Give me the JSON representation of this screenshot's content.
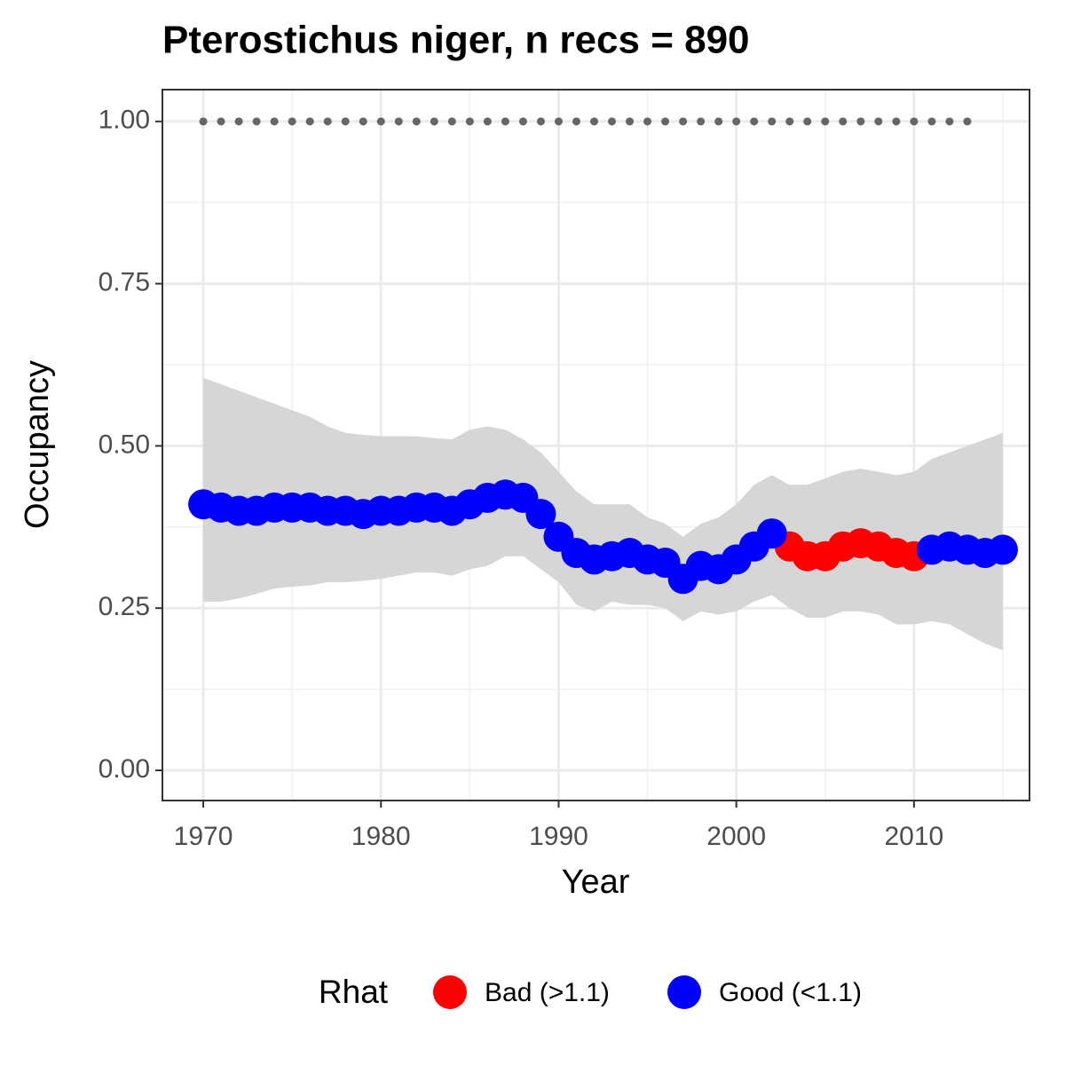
{
  "chart_data": {
    "type": "line",
    "title": "Pterostichus niger, n recs = 890",
    "xlabel": "Year",
    "ylabel": "Occupancy",
    "legend_title": "Rhat",
    "legend_position": "bottom",
    "x": [
      1970,
      1971,
      1972,
      1973,
      1974,
      1975,
      1976,
      1977,
      1978,
      1979,
      1980,
      1981,
      1982,
      1983,
      1984,
      1985,
      1986,
      1987,
      1988,
      1989,
      1990,
      1991,
      1992,
      1993,
      1994,
      1995,
      1996,
      1997,
      1998,
      1999,
      2000,
      2001,
      2002,
      2003,
      2004,
      2005,
      2006,
      2007,
      2008,
      2009,
      2010,
      2011,
      2012,
      2013,
      2014,
      2015
    ],
    "series": [
      {
        "name": "Bad (>1.1)",
        "color": "#ff0000",
        "values": [
          null,
          null,
          null,
          null,
          null,
          null,
          null,
          null,
          null,
          null,
          null,
          null,
          null,
          null,
          null,
          null,
          null,
          null,
          null,
          null,
          null,
          null,
          null,
          null,
          null,
          null,
          null,
          null,
          null,
          null,
          null,
          null,
          null,
          0.345,
          0.33,
          0.33,
          0.345,
          0.35,
          0.345,
          0.335,
          0.33,
          null,
          null,
          null,
          null,
          null
        ]
      },
      {
        "name": "Good (<1.1)",
        "color": "#0000ff",
        "values": [
          0.41,
          0.405,
          0.4,
          0.4,
          0.405,
          0.405,
          0.405,
          0.4,
          0.4,
          0.395,
          0.4,
          0.4,
          0.405,
          0.405,
          0.4,
          0.41,
          0.42,
          0.425,
          0.42,
          0.395,
          0.36,
          0.335,
          0.325,
          0.33,
          0.335,
          0.325,
          0.32,
          0.295,
          0.315,
          0.31,
          0.325,
          0.345,
          0.365,
          null,
          null,
          null,
          null,
          null,
          null,
          null,
          null,
          0.34,
          0.345,
          0.34,
          0.335,
          0.34
        ]
      }
    ],
    "band": {
      "color": "#d6d6d6",
      "upper": [
        0.605,
        0.595,
        0.585,
        0.575,
        0.565,
        0.555,
        0.545,
        0.53,
        0.52,
        0.517,
        0.515,
        0.515,
        0.515,
        0.512,
        0.51,
        0.525,
        0.53,
        0.525,
        0.51,
        0.49,
        0.46,
        0.43,
        0.41,
        0.41,
        0.41,
        0.39,
        0.38,
        0.36,
        0.38,
        0.39,
        0.41,
        0.44,
        0.455,
        0.44,
        0.44,
        0.45,
        0.46,
        0.465,
        0.46,
        0.455,
        0.46,
        0.48,
        0.49,
        0.5,
        0.51,
        0.52
      ],
      "lower": [
        0.26,
        0.26,
        0.265,
        0.272,
        0.28,
        0.283,
        0.285,
        0.29,
        0.29,
        0.292,
        0.295,
        0.3,
        0.305,
        0.305,
        0.3,
        0.31,
        0.315,
        0.33,
        0.33,
        0.31,
        0.29,
        0.255,
        0.245,
        0.26,
        0.255,
        0.255,
        0.25,
        0.23,
        0.245,
        0.24,
        0.245,
        0.26,
        0.27,
        0.25,
        0.235,
        0.235,
        0.245,
        0.245,
        0.24,
        0.225,
        0.225,
        0.23,
        0.225,
        0.21,
        0.195,
        0.185
      ]
    },
    "records": {
      "color": "#666666",
      "x": [
        1970,
        1971,
        1972,
        1973,
        1974,
        1975,
        1976,
        1977,
        1978,
        1979,
        1980,
        1981,
        1982,
        1983,
        1984,
        1985,
        1986,
        1987,
        1988,
        1989,
        1990,
        1991,
        1992,
        1993,
        1994,
        1995,
        1996,
        1997,
        1998,
        1999,
        2000,
        2001,
        2002,
        2003,
        2004,
        2005,
        2006,
        2007,
        2008,
        2009,
        2010,
        2011,
        2012,
        2013
      ],
      "values": [
        1,
        1,
        1,
        1,
        1,
        1,
        1,
        1,
        1,
        1,
        1,
        1,
        1,
        1,
        1,
        1,
        1,
        1,
        1,
        1,
        1,
        1,
        1,
        1,
        1,
        1,
        1,
        1,
        1,
        1,
        1,
        1,
        1,
        1,
        1,
        1,
        1,
        1,
        1,
        1,
        1,
        1,
        1,
        1
      ]
    },
    "xlim": [
      1967.7,
      2016.5
    ],
    "ylim": [
      -0.0465,
      1.049
    ],
    "xticks": [
      1970,
      1980,
      1990,
      2000,
      2010
    ],
    "yticks": [
      {
        "value": 0,
        "label": "0.00"
      },
      {
        "value": 0.25,
        "label": "0.25"
      },
      {
        "value": 0.5,
        "label": "0.50"
      },
      {
        "value": 0.75,
        "label": "0.75"
      },
      {
        "value": 1,
        "label": "1.00"
      }
    ],
    "x_minor_grid": [
      1975,
      1985,
      1995,
      2005,
      2015
    ],
    "y_minor_grid": [
      0.125,
      0.375,
      0.625,
      0.875
    ],
    "grid": true
  }
}
